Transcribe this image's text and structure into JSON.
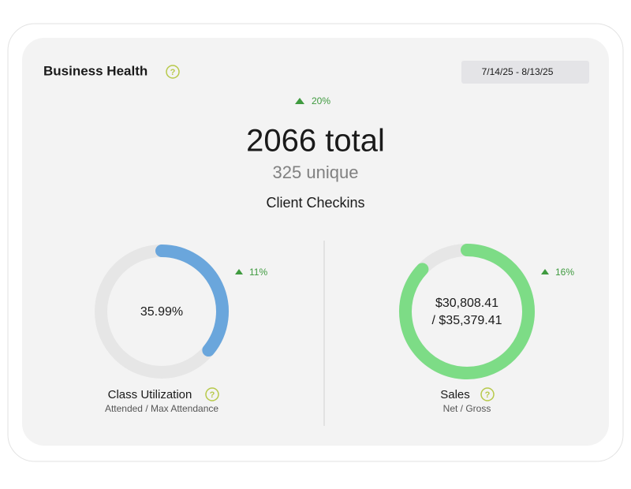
{
  "header": {
    "title": "Business Health",
    "date_range": "7/14/25 - 8/13/25"
  },
  "summary": {
    "change": "20%",
    "total": "2066 total",
    "unique": "325 unique",
    "label": "Client Checkins"
  },
  "gauges": [
    {
      "title": "Class Utilization",
      "subtitle": "Attended / Max Attendance",
      "change": "11%",
      "value": 35.99,
      "value_label": "35.99%",
      "color": "#6aa6dc"
    },
    {
      "title": "Sales",
      "subtitle": "Net / Gross",
      "change": "16%",
      "net": 30808.41,
      "gross": 35379.41,
      "net_label": "$30,808.41",
      "gross_label": "/ $35,379.41",
      "color": "#7ddc86"
    }
  ]
}
